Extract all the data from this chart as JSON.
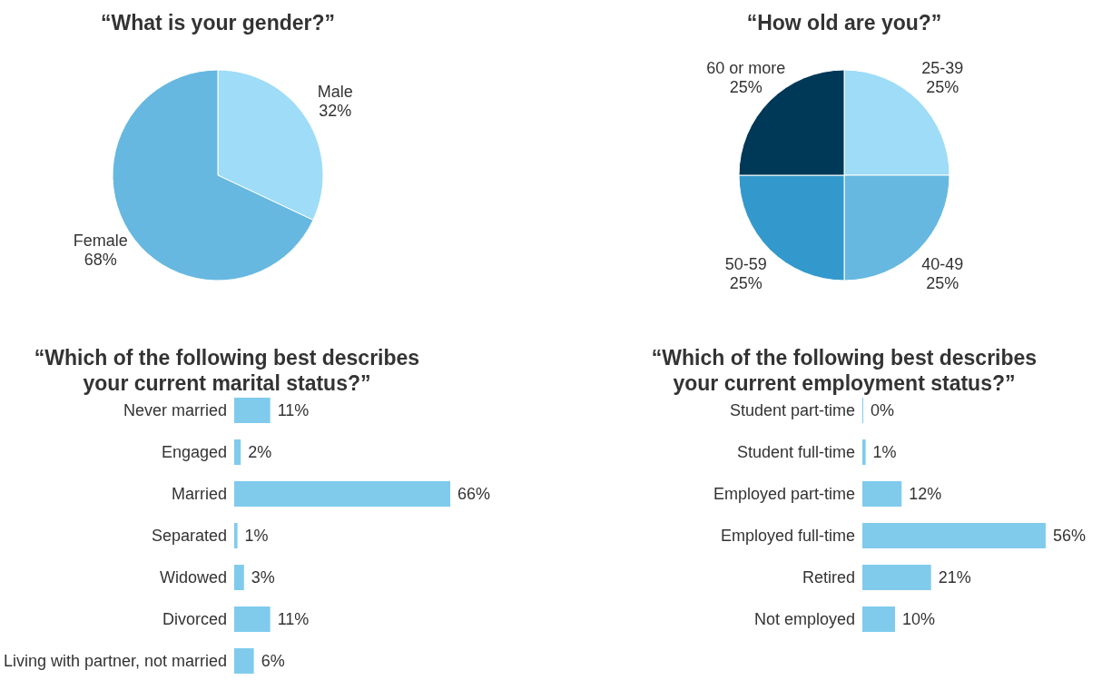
{
  "chart_data": [
    {
      "type": "pie",
      "title": "“What is your gender?”",
      "categories": [
        "Male",
        "Female"
      ],
      "values": [
        32,
        68
      ],
      "value_labels": [
        "32%",
        "68%"
      ],
      "colors": [
        "#9edcf7",
        "#66b8e0"
      ]
    },
    {
      "type": "pie",
      "title": "“How old are you?”",
      "categories": [
        "25-39",
        "40-49",
        "50-59",
        "60 or more"
      ],
      "values": [
        25,
        25,
        25,
        25
      ],
      "value_labels": [
        "25%",
        "25%",
        "25%",
        "25%"
      ],
      "colors": [
        "#9edcf7",
        "#66b8e0",
        "#3399cc",
        "#003857"
      ]
    },
    {
      "type": "bar",
      "orientation": "horizontal",
      "title": "“Which of the following best describes your current marital status?”",
      "categories": [
        "Never married",
        "Engaged",
        "Married",
        "Separated",
        "Widowed",
        "Divorced",
        "Living with partner, not married"
      ],
      "values": [
        11,
        2,
        66,
        1,
        3,
        11,
        6
      ],
      "value_labels": [
        "11%",
        "2%",
        "66%",
        "1%",
        "3%",
        "11%",
        "6%"
      ],
      "color": "#80cbec"
    },
    {
      "type": "bar",
      "orientation": "horizontal",
      "title": "“Which of the following best describes your current employment status?”",
      "categories": [
        "Student part-time",
        "Student full-time",
        "Employed part-time",
        "Employed full-time",
        "Retired",
        "Not employed"
      ],
      "values": [
        0,
        1,
        12,
        56,
        21,
        10
      ],
      "value_labels": [
        "0%",
        "1%",
        "12%",
        "56%",
        "21%",
        "10%"
      ],
      "color": "#80cbec"
    }
  ]
}
